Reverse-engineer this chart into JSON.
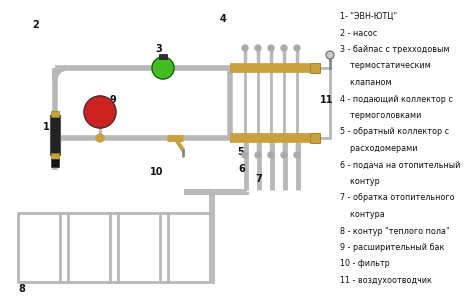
{
  "background_color": "#ffffff",
  "pipe_color": "#b8b8b8",
  "collector_color": "#c8a040",
  "pipe_lw": 4,
  "thin_pipe_lw": 2,
  "collector_lw": 7,
  "green_color": "#44bb22",
  "red_color": "#cc2222",
  "text_color": "#111111",
  "number_fontsize": 7,
  "text_fontsize": 6,
  "legend_lines": [
    "1- \"ЭВН-ЮТЦ\"",
    "2 - насос",
    "3 - байпас с трехходовым",
    "    термостатическим",
    "    клапаном",
    "4 - подающий коллектор с",
    "    термоголовками",
    "5 - обратный коллектор с",
    "    расходомерами",
    "6 - подача на отопительный",
    "    контур",
    "7 - обратка отопительного",
    "    контура",
    "8 - контур \"теплого пола\"",
    "9 - расширительный бак",
    "10 - фильтр",
    "11 - воздухоотводчик"
  ]
}
